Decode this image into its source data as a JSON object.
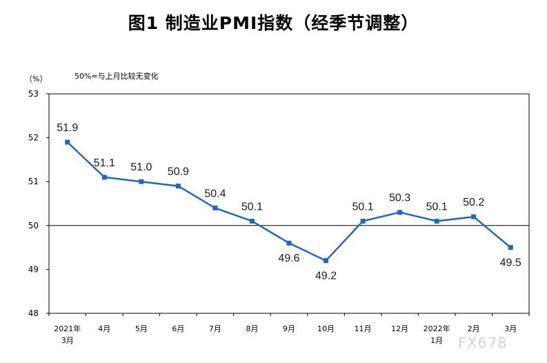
{
  "colors": {
    "line": "#1f66c6",
    "axis": "#000000",
    "watermark": "#d3d3d3"
  },
  "chart_data": {
    "type": "line",
    "title": "图1 制造业PMI指数（经季节调整）",
    "unit_label": "（%）",
    "note": "50%=与上月比较无变化",
    "categories": [
      "2021年3月",
      "4月",
      "5月",
      "6月",
      "7月",
      "8月",
      "9月",
      "10月",
      "11月",
      "12月",
      "2022年1月",
      "2月",
      "3月"
    ],
    "category_lines": [
      [
        "2021年",
        "3月"
      ],
      [
        "4月"
      ],
      [
        "5月"
      ],
      [
        "6月"
      ],
      [
        "7月"
      ],
      [
        "8月"
      ],
      [
        "9月"
      ],
      [
        "10月"
      ],
      [
        "11月"
      ],
      [
        "12月"
      ],
      [
        "2022年",
        "1月"
      ],
      [
        "2月"
      ],
      [
        "3月"
      ]
    ],
    "values": [
      51.9,
      51.1,
      51.0,
      50.9,
      50.4,
      50.1,
      49.6,
      49.2,
      50.1,
      50.3,
      50.1,
      50.2,
      49.5
    ],
    "value_labels": [
      "51.9",
      "51.1",
      "51.0",
      "50.9",
      "50.4",
      "50.1",
      "49.6",
      "49.2",
      "50.1",
      "50.3",
      "50.1",
      "50.2",
      "49.5"
    ],
    "label_positions": [
      "above",
      "above",
      "above",
      "above",
      "above",
      "above",
      "below",
      "below",
      "above",
      "above",
      "above",
      "above",
      "below"
    ],
    "ylim": [
      48,
      53
    ],
    "yticks": [
      "48",
      "49",
      "50",
      "51",
      "52",
      "53"
    ],
    "reference_line": 50,
    "grid": false,
    "legend": "none"
  },
  "watermark": "FX678"
}
